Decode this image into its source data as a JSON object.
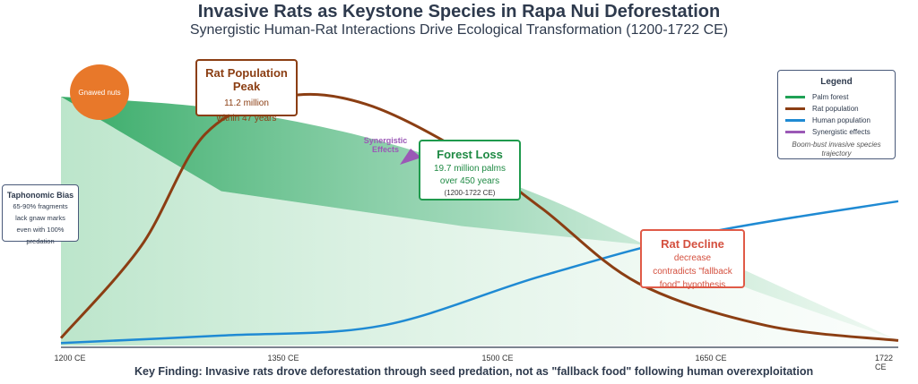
{
  "title": "Invasive Rats as Keystone Species in Rapa Nui Deforestation",
  "subtitle": "Synergistic Human-Rat Interactions Drive Ecological Transformation (1200-1722 CE)",
  "colors": {
    "palm_forest": "#1fa155",
    "rat_population": "#8b3e13",
    "human_population": "#1f8ad3",
    "synergistic": "#9b59b6",
    "nuts": "#e8782a",
    "decline": "#e05a47"
  },
  "gnawed_nuts": "Gnawed nuts",
  "synergistic_label": "Synergistic Effects",
  "peak_box": {
    "heading": "Rat Population Peak",
    "line1": "11.2 million",
    "line2": "within 47 years"
  },
  "forest_loss_box": {
    "heading": "Forest Loss",
    "line1": "19.7 million palms",
    "line2": "over 450 years",
    "line3": "(1200-1722 CE)"
  },
  "decline_box": {
    "heading": "Rat Decline",
    "line1": "decrease",
    "line2": "contradicts \"fallback",
    "line3": "food\" hypothesis"
  },
  "bias_box": {
    "heading": "Taphonomic Bias",
    "line1": "65-90% fragments",
    "line2": "lack gnaw marks",
    "line3": "even with 100%",
    "line4": "predation"
  },
  "legend": {
    "title": "Legend",
    "items": [
      "Palm forest",
      "Rat population",
      "Human population",
      "Synergistic effects"
    ],
    "note": "Boom-bust invasive species trajectory"
  },
  "x_ticks": [
    "1200 CE",
    "1350 CE",
    "1500 CE",
    "1650 CE",
    "1722 CE"
  ],
  "key_finding": "Key Finding: Invasive rats drove deforestation through seed predation, not as \"fallback food\" following human overexploitation",
  "chart_data": {
    "type": "line",
    "x_range": [
      1200,
      1722
    ],
    "x_ticks": [
      1200,
      1350,
      1500,
      1650,
      1722
    ],
    "y_range": [
      0,
      1
    ],
    "series": [
      {
        "name": "Palm forest",
        "x": [
          1200,
          1300,
          1400,
          1500,
          1600,
          1722
        ],
        "y": [
          1.0,
          0.95,
          0.82,
          0.6,
          0.3,
          0.02
        ]
      },
      {
        "name": "Rat population",
        "x": [
          1200,
          1250,
          1290,
          1340,
          1390,
          1450,
          1500,
          1560,
          1640,
          1722
        ],
        "y": [
          0.03,
          0.4,
          0.85,
          1.0,
          0.97,
          0.78,
          0.55,
          0.25,
          0.08,
          0.02
        ]
      },
      {
        "name": "Human population",
        "x": [
          1200,
          1300,
          1400,
          1500,
          1600,
          1722
        ],
        "y": [
          0.01,
          0.04,
          0.08,
          0.28,
          0.45,
          0.58
        ]
      }
    ]
  }
}
